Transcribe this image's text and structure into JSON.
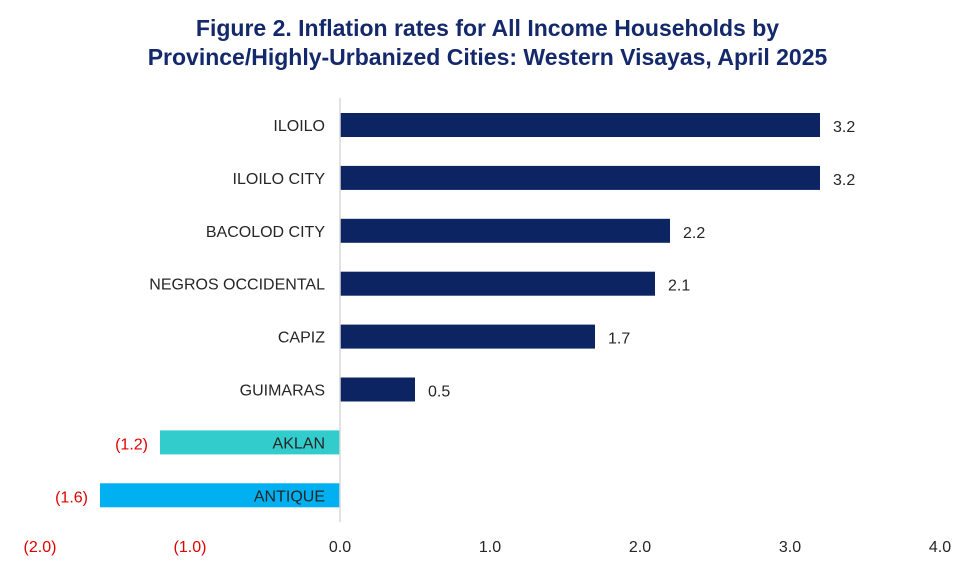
{
  "chart_data": {
    "type": "bar",
    "orientation": "horizontal",
    "title_lines": [
      "Figure 2.  Inflation rates for All Income Households by",
      "Province/Highly-Urbanized Cities: Western Visayas, April 2025"
    ],
    "categories": [
      "ILOILO",
      "ILOILO CITY",
      "BACOLOD CITY",
      "NEGROS OCCIDENTAL",
      "CAPIZ",
      "GUIMARAS",
      "AKLAN",
      "ANTIQUE"
    ],
    "values": [
      3.2,
      3.2,
      2.2,
      2.1,
      1.7,
      0.5,
      -1.2,
      -1.6
    ],
    "value_labels": [
      "3.2",
      "3.2",
      "2.2",
      "2.1",
      "1.7",
      "0.5",
      "(1.2)",
      "(1.6)"
    ],
    "bar_colors": [
      "#0c2461",
      "#0c2461",
      "#0c2461",
      "#0c2461",
      "#0c2461",
      "#0c2461",
      "#33cccc",
      "#00b0f0"
    ],
    "xlim": [
      -2.0,
      4.0
    ],
    "x_ticks": [
      -2.0,
      -1.0,
      0.0,
      1.0,
      2.0,
      3.0,
      4.0
    ],
    "x_tick_labels": [
      "(2.0)",
      "(1.0)",
      "0.0",
      "1.0",
      "2.0",
      "3.0",
      "4.0"
    ],
    "grid": false,
    "legend": "none",
    "colors": {
      "title": "#14296b",
      "positive_bar": "#0c2461",
      "negative_label": "#e00000",
      "text": "#262626",
      "axis": "#d9d9d9"
    }
  }
}
